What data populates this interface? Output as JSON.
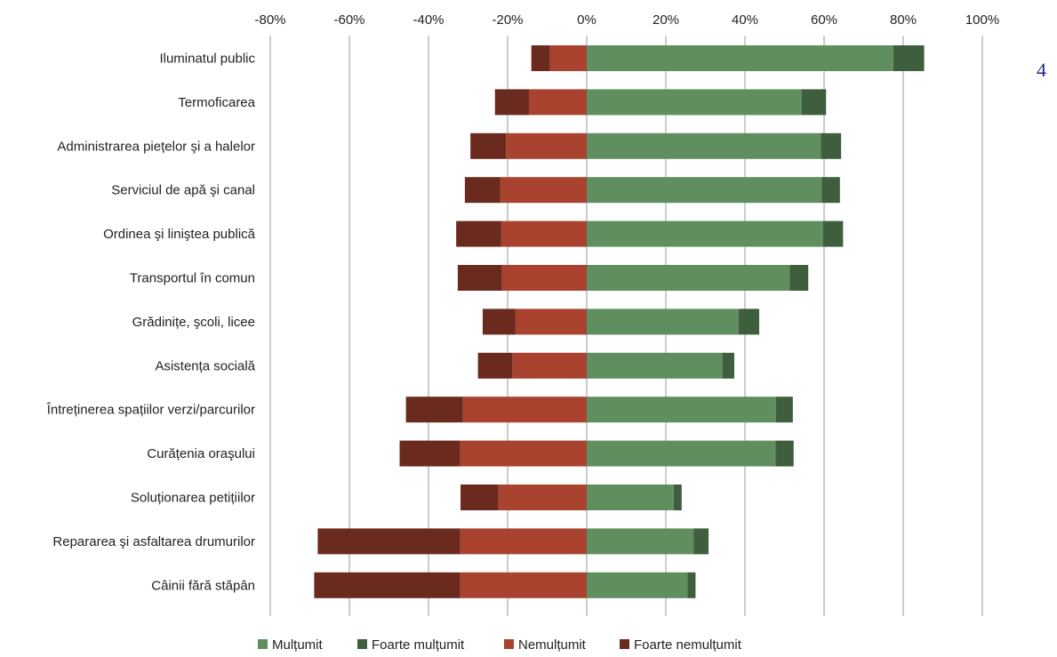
{
  "page_number": "4",
  "chart_data": {
    "type": "bar",
    "orientation": "horizontal",
    "stacking": "diverging",
    "xlim": [
      -80,
      100
    ],
    "xticks": [
      -80,
      -60,
      -40,
      -20,
      0,
      20,
      40,
      60,
      80,
      100
    ],
    "xtick_labels": [
      "-80%",
      "-60%",
      "-40%",
      "-20%",
      "0%",
      "20%",
      "40%",
      "60%",
      "80%",
      "100%"
    ],
    "grid": "vertical",
    "legend_position": "bottom",
    "categories": [
      "Iluminatul public",
      "Termoficarea",
      "Administrarea piețelor şi a halelor",
      "Serviciul de apă şi canal",
      "Ordinea şi liniştea publică",
      "Transportul în comun",
      "Grădinițe, şcoli, licee",
      "Asistența socială",
      "Întreținerea spațiilor verzi/parcurilor",
      "Curățenia oraşului",
      "Soluționarea petițiilor",
      "Repararea şi asfaltarea drumurilor",
      "Câinii fără stăpân"
    ],
    "series": [
      {
        "name": "Mulțumit",
        "color": "#5f8f5f",
        "values": [
          77.5,
          54.3,
          59.2,
          59.4,
          59.7,
          51.3,
          38.4,
          34.3,
          47.8,
          47.7,
          22.0,
          27.0,
          25.5
        ]
      },
      {
        "name": "Foarte mulțumit",
        "color": "#3e5e3e",
        "values": [
          7.8,
          6.2,
          5.1,
          4.6,
          5.1,
          4.7,
          5.2,
          3.0,
          4.3,
          4.6,
          2.0,
          3.8,
          2.0
        ]
      },
      {
        "name": "Nemulțumit",
        "color": "#a9432f",
        "values": [
          -9.3,
          -14.6,
          -20.4,
          -21.9,
          -21.6,
          -21.4,
          -18.0,
          -18.8,
          -31.3,
          -32.0,
          -22.3,
          -32.0,
          -32.0
        ]
      },
      {
        "name": "Foarte nemulțumit",
        "color": "#6b2a1e",
        "values": [
          -4.7,
          -8.6,
          -9.0,
          -8.9,
          -11.4,
          -11.2,
          -8.3,
          -8.7,
          -14.4,
          -15.3,
          -9.6,
          -36.0,
          -36.9
        ]
      }
    ]
  }
}
